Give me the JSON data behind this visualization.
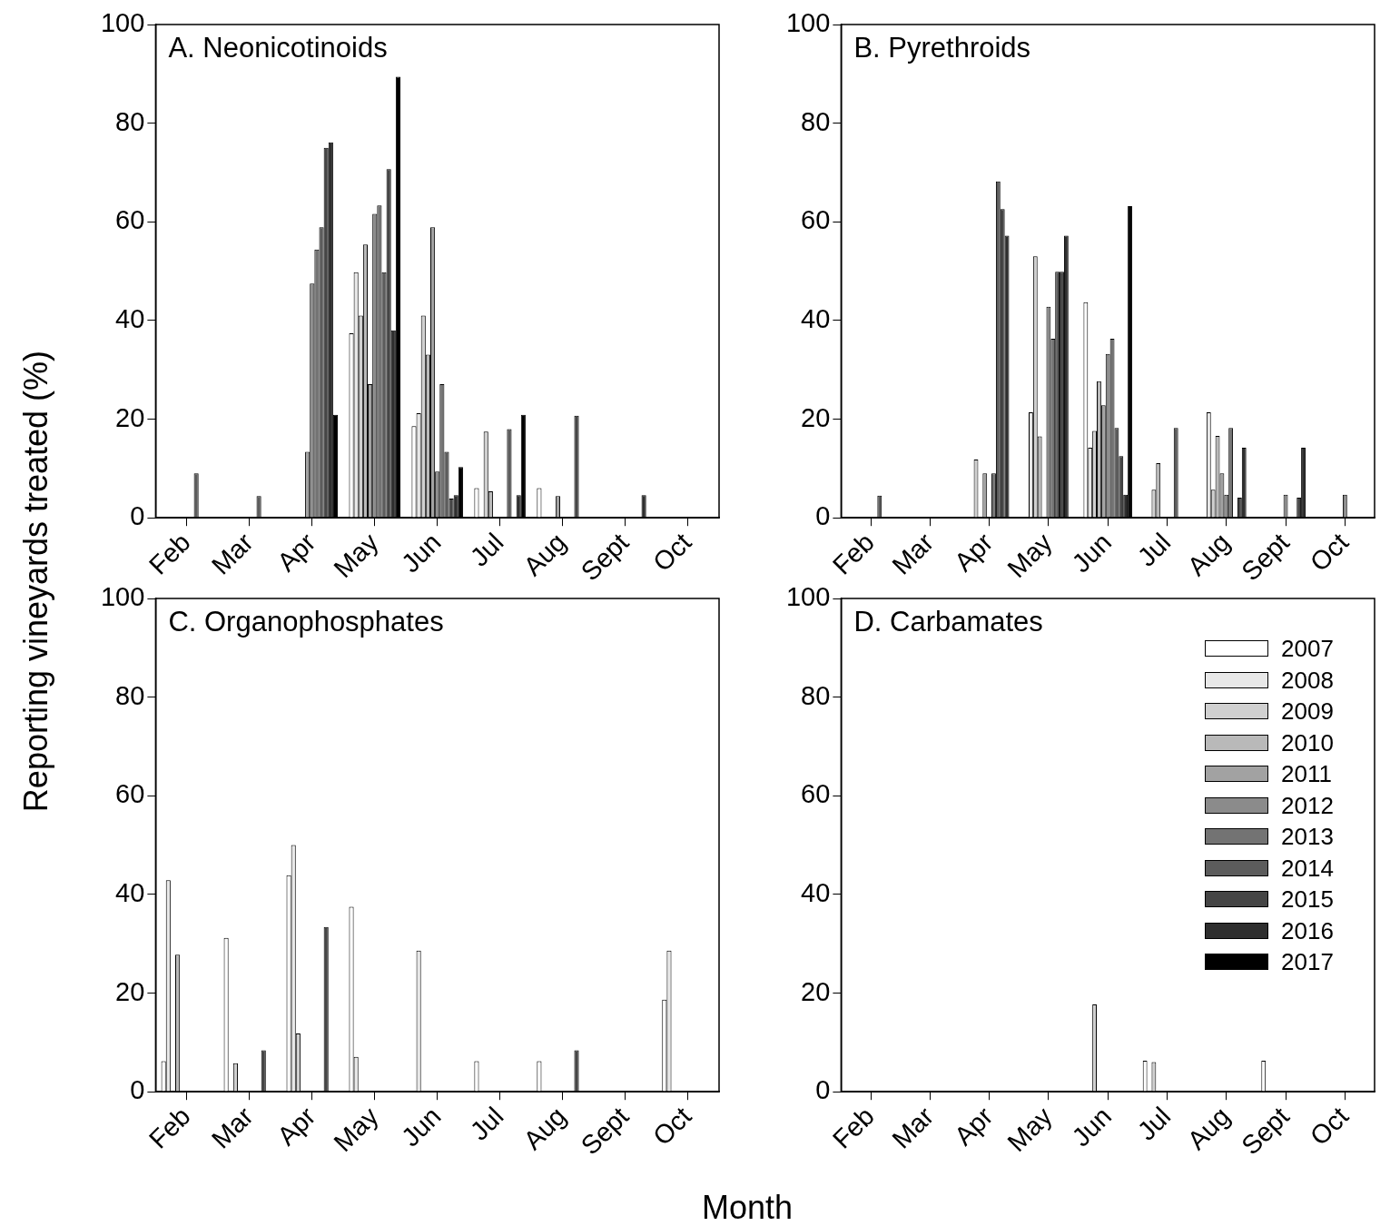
{
  "chart_data": [
    {
      "type": "bar",
      "title": "A. Neonicotinoids",
      "ylabel": "Reporting vineyards treated (%)",
      "categories": [
        "Feb",
        "Mar",
        "Apr",
        "May",
        "Jun",
        "Jul",
        "Aug",
        "Sept",
        "Oct"
      ],
      "ylim": [
        0,
        100
      ],
      "yticks": [
        0,
        20,
        40,
        60,
        80,
        100
      ],
      "legend": false,
      "series": [
        {
          "color": "#ffffff",
          "values": [
            null,
            null,
            null,
            37.4,
            18.6,
            6.0,
            6.0,
            null,
            null
          ]
        },
        {
          "color": "#e8e8e8",
          "values": [
            null,
            null,
            null,
            49.8,
            21.2,
            null,
            null,
            null,
            null
          ]
        },
        {
          "color": "#d0d0d0",
          "values": [
            null,
            null,
            null,
            41.0,
            41.0,
            17.5,
            null,
            null,
            null
          ]
        },
        {
          "color": "#b9b9b9",
          "values": [
            null,
            null,
            null,
            55.4,
            33.1,
            5.4,
            null,
            null,
            null
          ]
        },
        {
          "color": "#a2a2a2",
          "values": [
            null,
            null,
            13.4,
            27.1,
            58.9,
            null,
            4.4,
            null,
            null
          ]
        },
        {
          "color": "#8b8b8b",
          "values": [
            null,
            null,
            47.5,
            61.6,
            9.4,
            null,
            null,
            null,
            null
          ]
        },
        {
          "color": "#737373",
          "values": [
            null,
            null,
            54.4,
            63.3,
            27.1,
            null,
            null,
            null,
            null
          ]
        },
        {
          "color": "#5c5c5c",
          "values": [
            9.0,
            4.4,
            58.9,
            49.8,
            13.4,
            18.0,
            null,
            null,
            null
          ]
        },
        {
          "color": "#454545",
          "values": [
            null,
            null,
            75.0,
            70.7,
            3.9,
            null,
            20.7,
            null,
            null
          ]
        },
        {
          "color": "#2e2e2e",
          "values": [
            null,
            null,
            76.1,
            38.0,
            4.6,
            4.6,
            null,
            4.6,
            null
          ]
        },
        {
          "color": "#000000",
          "values": [
            null,
            null,
            20.9,
            89.4,
            10.3,
            20.9,
            null,
            null,
            null
          ]
        }
      ]
    },
    {
      "type": "bar",
      "title": "B. Pyrethroids",
      "categories": [
        "Feb",
        "Mar",
        "Apr",
        "May",
        "Jun",
        "Jul",
        "Aug",
        "Sept",
        "Oct"
      ],
      "ylim": [
        0,
        100
      ],
      "yticks": [
        0,
        20,
        40,
        60,
        80,
        100
      ],
      "legend": false,
      "series": [
        {
          "color": "#ffffff",
          "values": [
            null,
            null,
            null,
            null,
            43.7,
            null,
            null,
            null,
            null
          ]
        },
        {
          "color": "#e8e8e8",
          "values": [
            null,
            null,
            null,
            21.4,
            14.2,
            null,
            21.4,
            null,
            null
          ]
        },
        {
          "color": "#d0d0d0",
          "values": [
            null,
            null,
            11.8,
            53.0,
            17.6,
            5.7,
            5.7,
            null,
            null
          ]
        },
        {
          "color": "#b9b9b9",
          "values": [
            null,
            null,
            null,
            16.5,
            27.7,
            11.1,
            16.6,
            null,
            null
          ]
        },
        {
          "color": "#a2a2a2",
          "values": [
            null,
            null,
            9.0,
            null,
            22.8,
            null,
            9.0,
            null,
            null
          ]
        },
        {
          "color": "#8b8b8b",
          "values": [
            null,
            null,
            null,
            42.8,
            33.2,
            null,
            4.7,
            4.7,
            4.7
          ]
        },
        {
          "color": "#737373",
          "values": [
            null,
            null,
            9.0,
            36.3,
            36.3,
            null,
            18.2,
            null,
            null
          ]
        },
        {
          "color": "#5c5c5c",
          "values": [
            4.5,
            null,
            68.2,
            49.9,
            18.2,
            18.2,
            null,
            null,
            null
          ]
        },
        {
          "color": "#454545",
          "values": [
            null,
            null,
            62.6,
            49.9,
            12.5,
            null,
            4.1,
            4.1,
            null
          ]
        },
        {
          "color": "#2e2e2e",
          "values": [
            null,
            null,
            57.2,
            57.2,
            4.7,
            null,
            14.2,
            14.2,
            null
          ]
        },
        {
          "color": "#000000",
          "values": [
            null,
            null,
            null,
            null,
            63.2,
            null,
            null,
            null,
            null
          ]
        }
      ]
    },
    {
      "type": "bar",
      "title": "C. Organophosphates",
      "xlabel": "Month",
      "categories": [
        "Feb",
        "Mar",
        "Apr",
        "May",
        "Jun",
        "Jul",
        "Aug",
        "Sept",
        "Oct"
      ],
      "ylim": [
        0,
        100
      ],
      "yticks": [
        0,
        20,
        40,
        60,
        80,
        100
      ],
      "legend": false,
      "series": [
        {
          "color": "#ffffff",
          "values": [
            6.2,
            31.2,
            43.9,
            37.5,
            null,
            6.2,
            6.2,
            null,
            18.7
          ]
        },
        {
          "color": "#e8e8e8",
          "values": [
            42.9,
            null,
            50.0,
            7.1,
            28.6,
            null,
            null,
            null,
            28.6
          ]
        },
        {
          "color": "#d0d0d0",
          "values": [
            null,
            5.8,
            11.8,
            null,
            null,
            null,
            null,
            null,
            null
          ]
        },
        {
          "color": "#b9b9b9",
          "values": [
            27.8,
            null,
            null,
            null,
            null,
            null,
            null,
            null,
            null
          ]
        },
        {
          "color": "#a2a2a2",
          "values": [
            null,
            null,
            null,
            null,
            null,
            null,
            null,
            null,
            null
          ]
        },
        {
          "color": "#8b8b8b",
          "values": [
            null,
            null,
            null,
            null,
            null,
            null,
            null,
            null,
            null
          ]
        },
        {
          "color": "#737373",
          "values": [
            null,
            null,
            null,
            null,
            null,
            null,
            null,
            null,
            null
          ]
        },
        {
          "color": "#5c5c5c",
          "values": [
            null,
            null,
            null,
            null,
            null,
            null,
            null,
            null,
            null
          ]
        },
        {
          "color": "#454545",
          "values": [
            null,
            8.4,
            33.4,
            null,
            null,
            null,
            8.4,
            null,
            null
          ]
        },
        {
          "color": "#2e2e2e",
          "values": [
            null,
            null,
            null,
            null,
            null,
            null,
            null,
            null,
            null
          ]
        },
        {
          "color": "#000000",
          "values": [
            null,
            null,
            null,
            null,
            null,
            null,
            null,
            null,
            null
          ]
        }
      ]
    },
    {
      "type": "bar",
      "title": "D. Carbamates",
      "categories": [
        "Feb",
        "Mar",
        "Apr",
        "May",
        "Jun",
        "Jul",
        "Aug",
        "Sept",
        "Oct"
      ],
      "ylim": [
        0,
        100
      ],
      "yticks": [
        0,
        20,
        40,
        60,
        80,
        100
      ],
      "legend": "top right",
      "series": [
        {
          "name": "2007",
          "color": "#ffffff",
          "values": [
            null,
            null,
            null,
            null,
            null,
            6.3,
            null,
            6.3,
            null
          ]
        },
        {
          "name": "2008",
          "color": "#e8e8e8",
          "values": [
            null,
            null,
            null,
            null,
            null,
            null,
            null,
            null,
            null
          ]
        },
        {
          "name": "2009",
          "color": "#d0d0d0",
          "values": [
            null,
            null,
            null,
            null,
            17.7,
            6.0,
            null,
            null,
            null
          ]
        },
        {
          "name": "2010",
          "color": "#b9b9b9",
          "values": [
            null,
            null,
            null,
            null,
            null,
            null,
            null,
            null,
            null
          ]
        },
        {
          "name": "2011",
          "color": "#a2a2a2",
          "values": [
            null,
            null,
            null,
            null,
            null,
            null,
            null,
            null,
            null
          ]
        },
        {
          "name": "2012",
          "color": "#8b8b8b",
          "values": [
            null,
            null,
            null,
            null,
            null,
            null,
            null,
            null,
            null
          ]
        },
        {
          "name": "2013",
          "color": "#737373",
          "values": [
            null,
            null,
            null,
            null,
            null,
            null,
            null,
            null,
            null
          ]
        },
        {
          "name": "2014",
          "color": "#5c5c5c",
          "values": [
            null,
            null,
            null,
            null,
            null,
            null,
            null,
            null,
            null
          ]
        },
        {
          "name": "2015",
          "color": "#454545",
          "values": [
            null,
            null,
            null,
            null,
            null,
            null,
            null,
            null,
            null
          ]
        },
        {
          "name": "2016",
          "color": "#2e2e2e",
          "values": [
            null,
            null,
            null,
            null,
            null,
            null,
            null,
            null,
            null
          ]
        },
        {
          "name": "2017",
          "color": "#000000",
          "values": [
            null,
            null,
            null,
            null,
            null,
            null,
            null,
            null,
            null
          ]
        }
      ]
    }
  ]
}
